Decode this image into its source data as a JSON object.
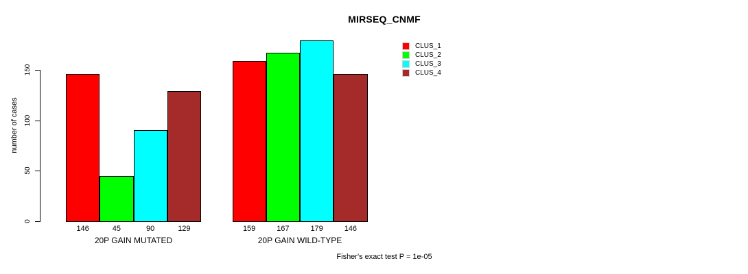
{
  "chart_data": {
    "type": "bar",
    "title": "MIRSEQ_CNMF",
    "ylabel": "number of cases",
    "xlabel": "",
    "categories": [
      "20P GAIN MUTATED",
      "20P GAIN WILD-TYPE"
    ],
    "series": [
      {
        "name": "CLUS_1",
        "color": "#ff0000",
        "values": [
          146,
          159
        ]
      },
      {
        "name": "CLUS_2",
        "color": "#00ff00",
        "values": [
          45,
          167
        ]
      },
      {
        "name": "CLUS_3",
        "color": "#00ffff",
        "values": [
          90,
          179
        ]
      },
      {
        "name": "CLUS_4",
        "color": "#a52a2a",
        "values": [
          129,
          146
        ]
      }
    ],
    "yticks": [
      0,
      50,
      100,
      150
    ],
    "ylim": [
      0,
      185
    ],
    "bar_value_labels_shown": true,
    "legend_position": "top-right",
    "grid": false,
    "annotation": "Fisher's exact test P = 1e-05",
    "axis_color": "#000000",
    "background_color": "#ffffff"
  }
}
